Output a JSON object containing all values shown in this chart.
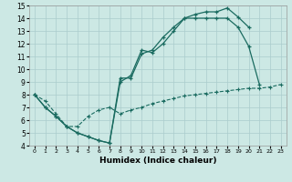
{
  "xlabel": "Humidex (Indice chaleur)",
  "xlim": [
    -0.5,
    23.5
  ],
  "ylim": [
    4,
    15
  ],
  "xticks": [
    0,
    1,
    2,
    3,
    4,
    5,
    6,
    7,
    8,
    9,
    10,
    11,
    12,
    13,
    14,
    15,
    16,
    17,
    18,
    19,
    20,
    21,
    22,
    23
  ],
  "yticks": [
    4,
    5,
    6,
    7,
    8,
    9,
    10,
    11,
    12,
    13,
    14,
    15
  ],
  "background_color": "#cce8e4",
  "grid_color": "#aacccc",
  "line_color": "#1a6b60",
  "line1_x": [
    0,
    1,
    2,
    3,
    4,
    5,
    6,
    7,
    8,
    9,
    10,
    11,
    12,
    13,
    14,
    15,
    16,
    17,
    18,
    19,
    20
  ],
  "line1_y": [
    8.0,
    7.0,
    6.3,
    5.5,
    5.0,
    4.7,
    4.4,
    4.2,
    9.0,
    9.5,
    11.5,
    11.3,
    12.0,
    13.0,
    14.0,
    14.3,
    14.5,
    14.5,
    14.8,
    14.1,
    13.3
  ],
  "line2_x": [
    0,
    1,
    2,
    3,
    4,
    5,
    6,
    7,
    8,
    9,
    10,
    11,
    12,
    13,
    14,
    15,
    16,
    17,
    18,
    19,
    20,
    21
  ],
  "line2_y": [
    8.0,
    7.0,
    6.3,
    5.5,
    5.0,
    4.7,
    4.4,
    4.2,
    9.3,
    9.3,
    11.2,
    11.5,
    12.5,
    13.3,
    14.0,
    14.0,
    14.0,
    14.0,
    14.0,
    13.3,
    11.8,
    8.8
  ],
  "line3_x": [
    0,
    1,
    2,
    3,
    4,
    5,
    6,
    7,
    8,
    9,
    10,
    11,
    12,
    13,
    14,
    15,
    16,
    17,
    18,
    19,
    20,
    21,
    22,
    23
  ],
  "line3_y": [
    8.0,
    7.5,
    6.5,
    5.5,
    5.5,
    6.3,
    6.8,
    7.0,
    6.5,
    6.8,
    7.0,
    7.3,
    7.5,
    7.7,
    7.9,
    8.0,
    8.1,
    8.2,
    8.3,
    8.4,
    8.5,
    8.5,
    8.6,
    8.8
  ]
}
